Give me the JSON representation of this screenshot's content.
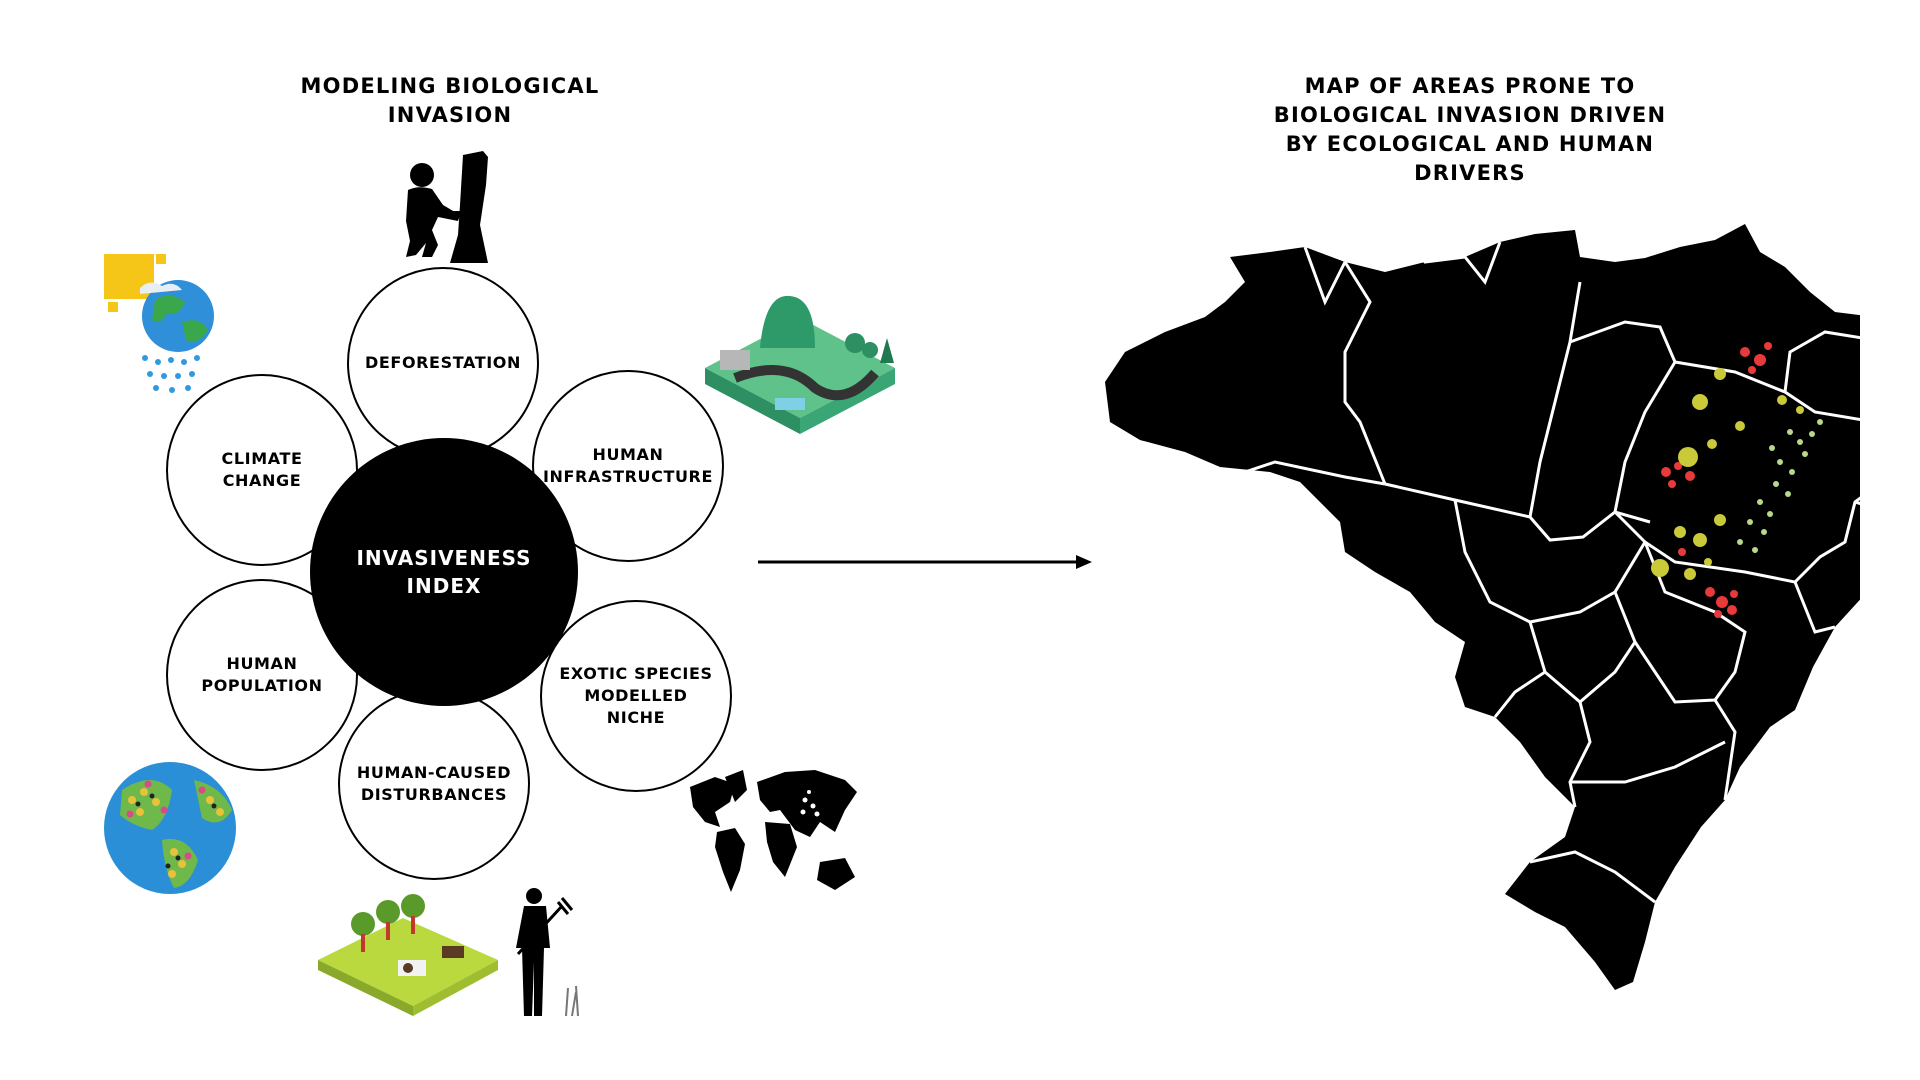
{
  "left_title": "MODELING BIOLOGICAL\nINVASION",
  "right_title": "MAP OF AREAS PRONE TO\nBIOLOGICAL INVASION DRIVEN\nBY ECOLOGICAL AND HUMAN\nDRIVERS",
  "center_node": "INVASIVENESS\nINDEX",
  "drivers": {
    "deforestation": "DEFORESTATION",
    "human_infrastructure": "HUMAN\nINFRASTRUCTURE",
    "exotic_species": "EXOTIC SPECIES\nMODELLED\nNICHE",
    "human_disturbances": "HUMAN-CAUSED\nDISTURBANCES",
    "human_population": "HUMAN\nPOPULATION",
    "climate_change": "CLIMATE CHANGE"
  },
  "icons": {
    "deforestation": "logger-chainsaw-tree-icon",
    "human_infrastructure": "isometric-road-landscape-icon",
    "exotic_species": "world-map-icon",
    "human_disturbances": "farm-cattle-farmer-icon",
    "human_population": "crowded-globe-icon",
    "climate_change": "sun-rain-globe-icon"
  },
  "colors": {
    "hotspot_red": "#e83a3a",
    "hotspot_yellow": "#c9c93a",
    "hotspot_lightgreen": "#b9d98a",
    "map_fill": "#000000"
  }
}
